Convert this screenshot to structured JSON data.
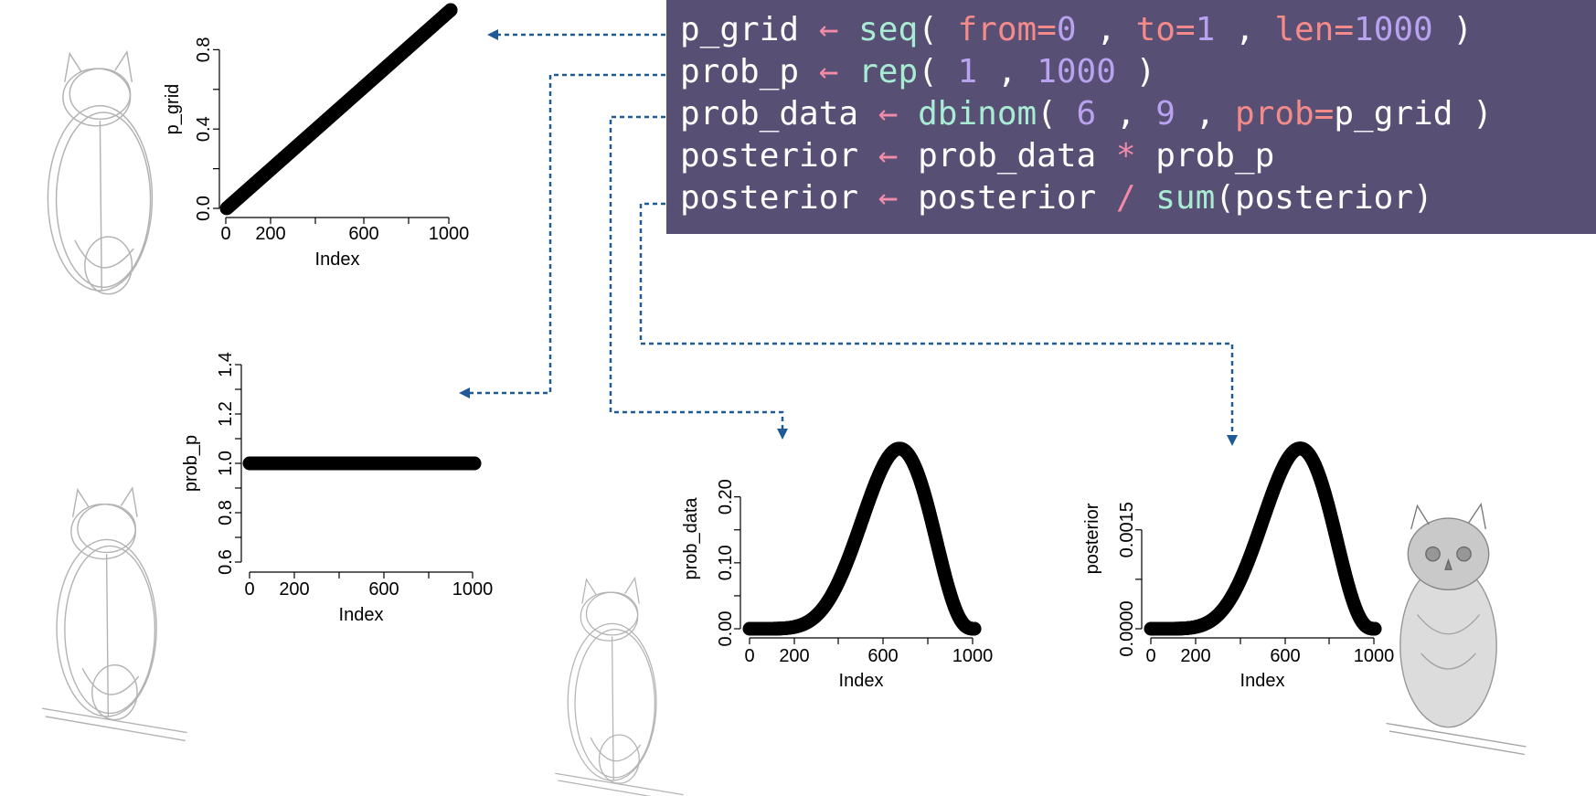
{
  "code": {
    "lines": [
      [
        {
          "t": "p_grid ",
          "k": "var"
        },
        {
          "t": "←",
          "k": "arrow"
        },
        {
          "t": " ",
          "k": "punct"
        },
        {
          "t": "seq",
          "k": "fn"
        },
        {
          "t": "( ",
          "k": "punct"
        },
        {
          "t": "from=",
          "k": "arg"
        },
        {
          "t": "0",
          "k": "num"
        },
        {
          "t": " , ",
          "k": "punct"
        },
        {
          "t": "to=",
          "k": "arg"
        },
        {
          "t": "1",
          "k": "num"
        },
        {
          "t": " , ",
          "k": "punct"
        },
        {
          "t": "len=",
          "k": "arg"
        },
        {
          "t": "1000",
          "k": "num"
        },
        {
          "t": " )",
          "k": "punct"
        }
      ],
      [
        {
          "t": "prob_p ",
          "k": "var"
        },
        {
          "t": "←",
          "k": "arrow"
        },
        {
          "t": " ",
          "k": "punct"
        },
        {
          "t": "rep",
          "k": "fn"
        },
        {
          "t": "( ",
          "k": "punct"
        },
        {
          "t": "1",
          "k": "num"
        },
        {
          "t": " , ",
          "k": "punct"
        },
        {
          "t": "1000",
          "k": "num"
        },
        {
          "t": " )",
          "k": "punct"
        }
      ],
      [
        {
          "t": "prob_data ",
          "k": "var"
        },
        {
          "t": "←",
          "k": "arrow"
        },
        {
          "t": " ",
          "k": "punct"
        },
        {
          "t": "dbinom",
          "k": "fn"
        },
        {
          "t": "( ",
          "k": "punct"
        },
        {
          "t": "6",
          "k": "num"
        },
        {
          "t": " , ",
          "k": "punct"
        },
        {
          "t": "9",
          "k": "num"
        },
        {
          "t": " , ",
          "k": "punct"
        },
        {
          "t": "prob=",
          "k": "arg"
        },
        {
          "t": "p_grid",
          "k": "var"
        },
        {
          "t": " )",
          "k": "punct"
        }
      ],
      [
        {
          "t": "posterior ",
          "k": "var"
        },
        {
          "t": "←",
          "k": "arrow"
        },
        {
          "t": " prob_data ",
          "k": "var"
        },
        {
          "t": "*",
          "k": "op"
        },
        {
          "t": " prob_p",
          "k": "var"
        }
      ],
      [
        {
          "t": "posterior ",
          "k": "var"
        },
        {
          "t": "←",
          "k": "arrow"
        },
        {
          "t": " posterior ",
          "k": "var"
        },
        {
          "t": "/",
          "k": "op"
        },
        {
          "t": " ",
          "k": "punct"
        },
        {
          "t": "sum",
          "k": "fn"
        },
        {
          "t": "(posterior)",
          "k": "var"
        }
      ]
    ]
  },
  "colors": {
    "code_bg": "#585074",
    "connector": "#1f5a94",
    "points": "#000000",
    "sketch": "#9a9a9a"
  },
  "chart_data": [
    {
      "id": "p_grid",
      "type": "scatter",
      "ylabel": "p_grid",
      "xlabel": "Index",
      "xticks": [
        "0",
        "200",
        "600",
        "1000"
      ],
      "yticks": [
        "0.0",
        "0.4",
        "0.8"
      ],
      "xlim": [
        1,
        1000
      ],
      "ylim": [
        0,
        1
      ],
      "series": {
        "from": 0,
        "to": 1,
        "len": 1000
      }
    },
    {
      "id": "prob_p",
      "type": "scatter",
      "ylabel": "prob_p",
      "xlabel": "Index",
      "xticks": [
        "0",
        "200",
        "600",
        "1000"
      ],
      "yticks": [
        "0.6",
        "0.8",
        "1.0",
        "1.2",
        "1.4"
      ],
      "xlim": [
        1,
        1000
      ],
      "ylim": [
        0.6,
        1.4
      ],
      "series": {
        "value": 1,
        "len": 1000
      }
    },
    {
      "id": "prob_data",
      "type": "scatter",
      "ylabel": "prob_data",
      "xlabel": "Index",
      "xticks": [
        "0",
        "200",
        "600",
        "1000"
      ],
      "yticks": [
        "0.00",
        "0.10",
        "0.20"
      ],
      "xlim": [
        1,
        1000
      ],
      "ylim": [
        0,
        0.273
      ],
      "series": {
        "successes": 6,
        "trials": 9,
        "len": 1000
      }
    },
    {
      "id": "posterior",
      "type": "scatter",
      "ylabel": "posterior",
      "xlabel": "Index",
      "xticks": [
        "0",
        "200",
        "600",
        "1000"
      ],
      "yticks": [
        "0.0000",
        "0.0015"
      ],
      "xlim": [
        1,
        1000
      ],
      "ylim": [
        0,
        0.00273
      ],
      "series": {
        "successes": 6,
        "trials": 9,
        "len": 1000,
        "normalized": true
      }
    }
  ]
}
